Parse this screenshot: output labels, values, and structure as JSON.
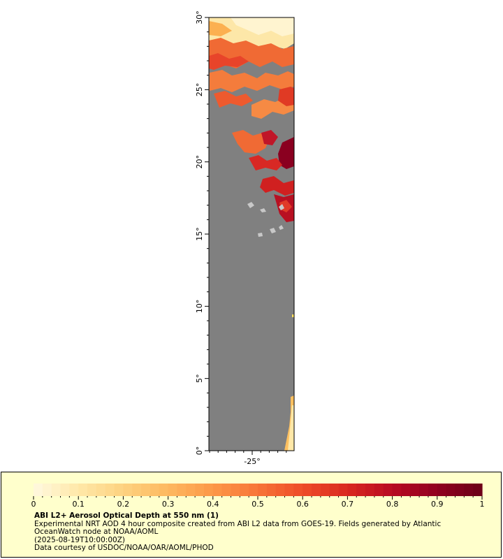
{
  "map": {
    "lat_ticks": [
      {
        "value": 0,
        "label": "0°"
      },
      {
        "value": 5,
        "label": "5°"
      },
      {
        "value": 10,
        "label": "10°"
      },
      {
        "value": 15,
        "label": "15°"
      },
      {
        "value": 20,
        "label": "20°"
      },
      {
        "value": 25,
        "label": "25°"
      },
      {
        "value": 30,
        "label": "30°"
      }
    ],
    "lon_tick": {
      "value": -25,
      "label": "-25°"
    },
    "colors": {
      "no_data": "#808080",
      "land": "#c8c8c8",
      "frame": "#000000"
    }
  },
  "legend": {
    "background": "#ffffcc",
    "colorbar_labels": [
      "0",
      "0.1",
      "0.2",
      "0.3",
      "0.4",
      "0.5",
      "0.6",
      "0.7",
      "0.8",
      "0.9",
      "1"
    ],
    "colormap": [
      "#fff9e0",
      "#ffe8a8",
      "#fdd280",
      "#fdb860",
      "#fc9848",
      "#f77438",
      "#ee4c28",
      "#d92820",
      "#b80a22",
      "#900020",
      "#6b0017"
    ],
    "title": "ABI L2+ Aerosol Optical Depth at 550 nm (1)",
    "line1": "Experimental NRT AOD 4 hour composite created from ABI L2 data from GOES-19. Fields generated by Atlantic OceanWatch node at NOAA/AOML",
    "line2": "(2025-08-19T10:00:00Z)",
    "line3": "Data courtesy of USDOC/NOAA/OAR/AOML/PHOD"
  }
}
